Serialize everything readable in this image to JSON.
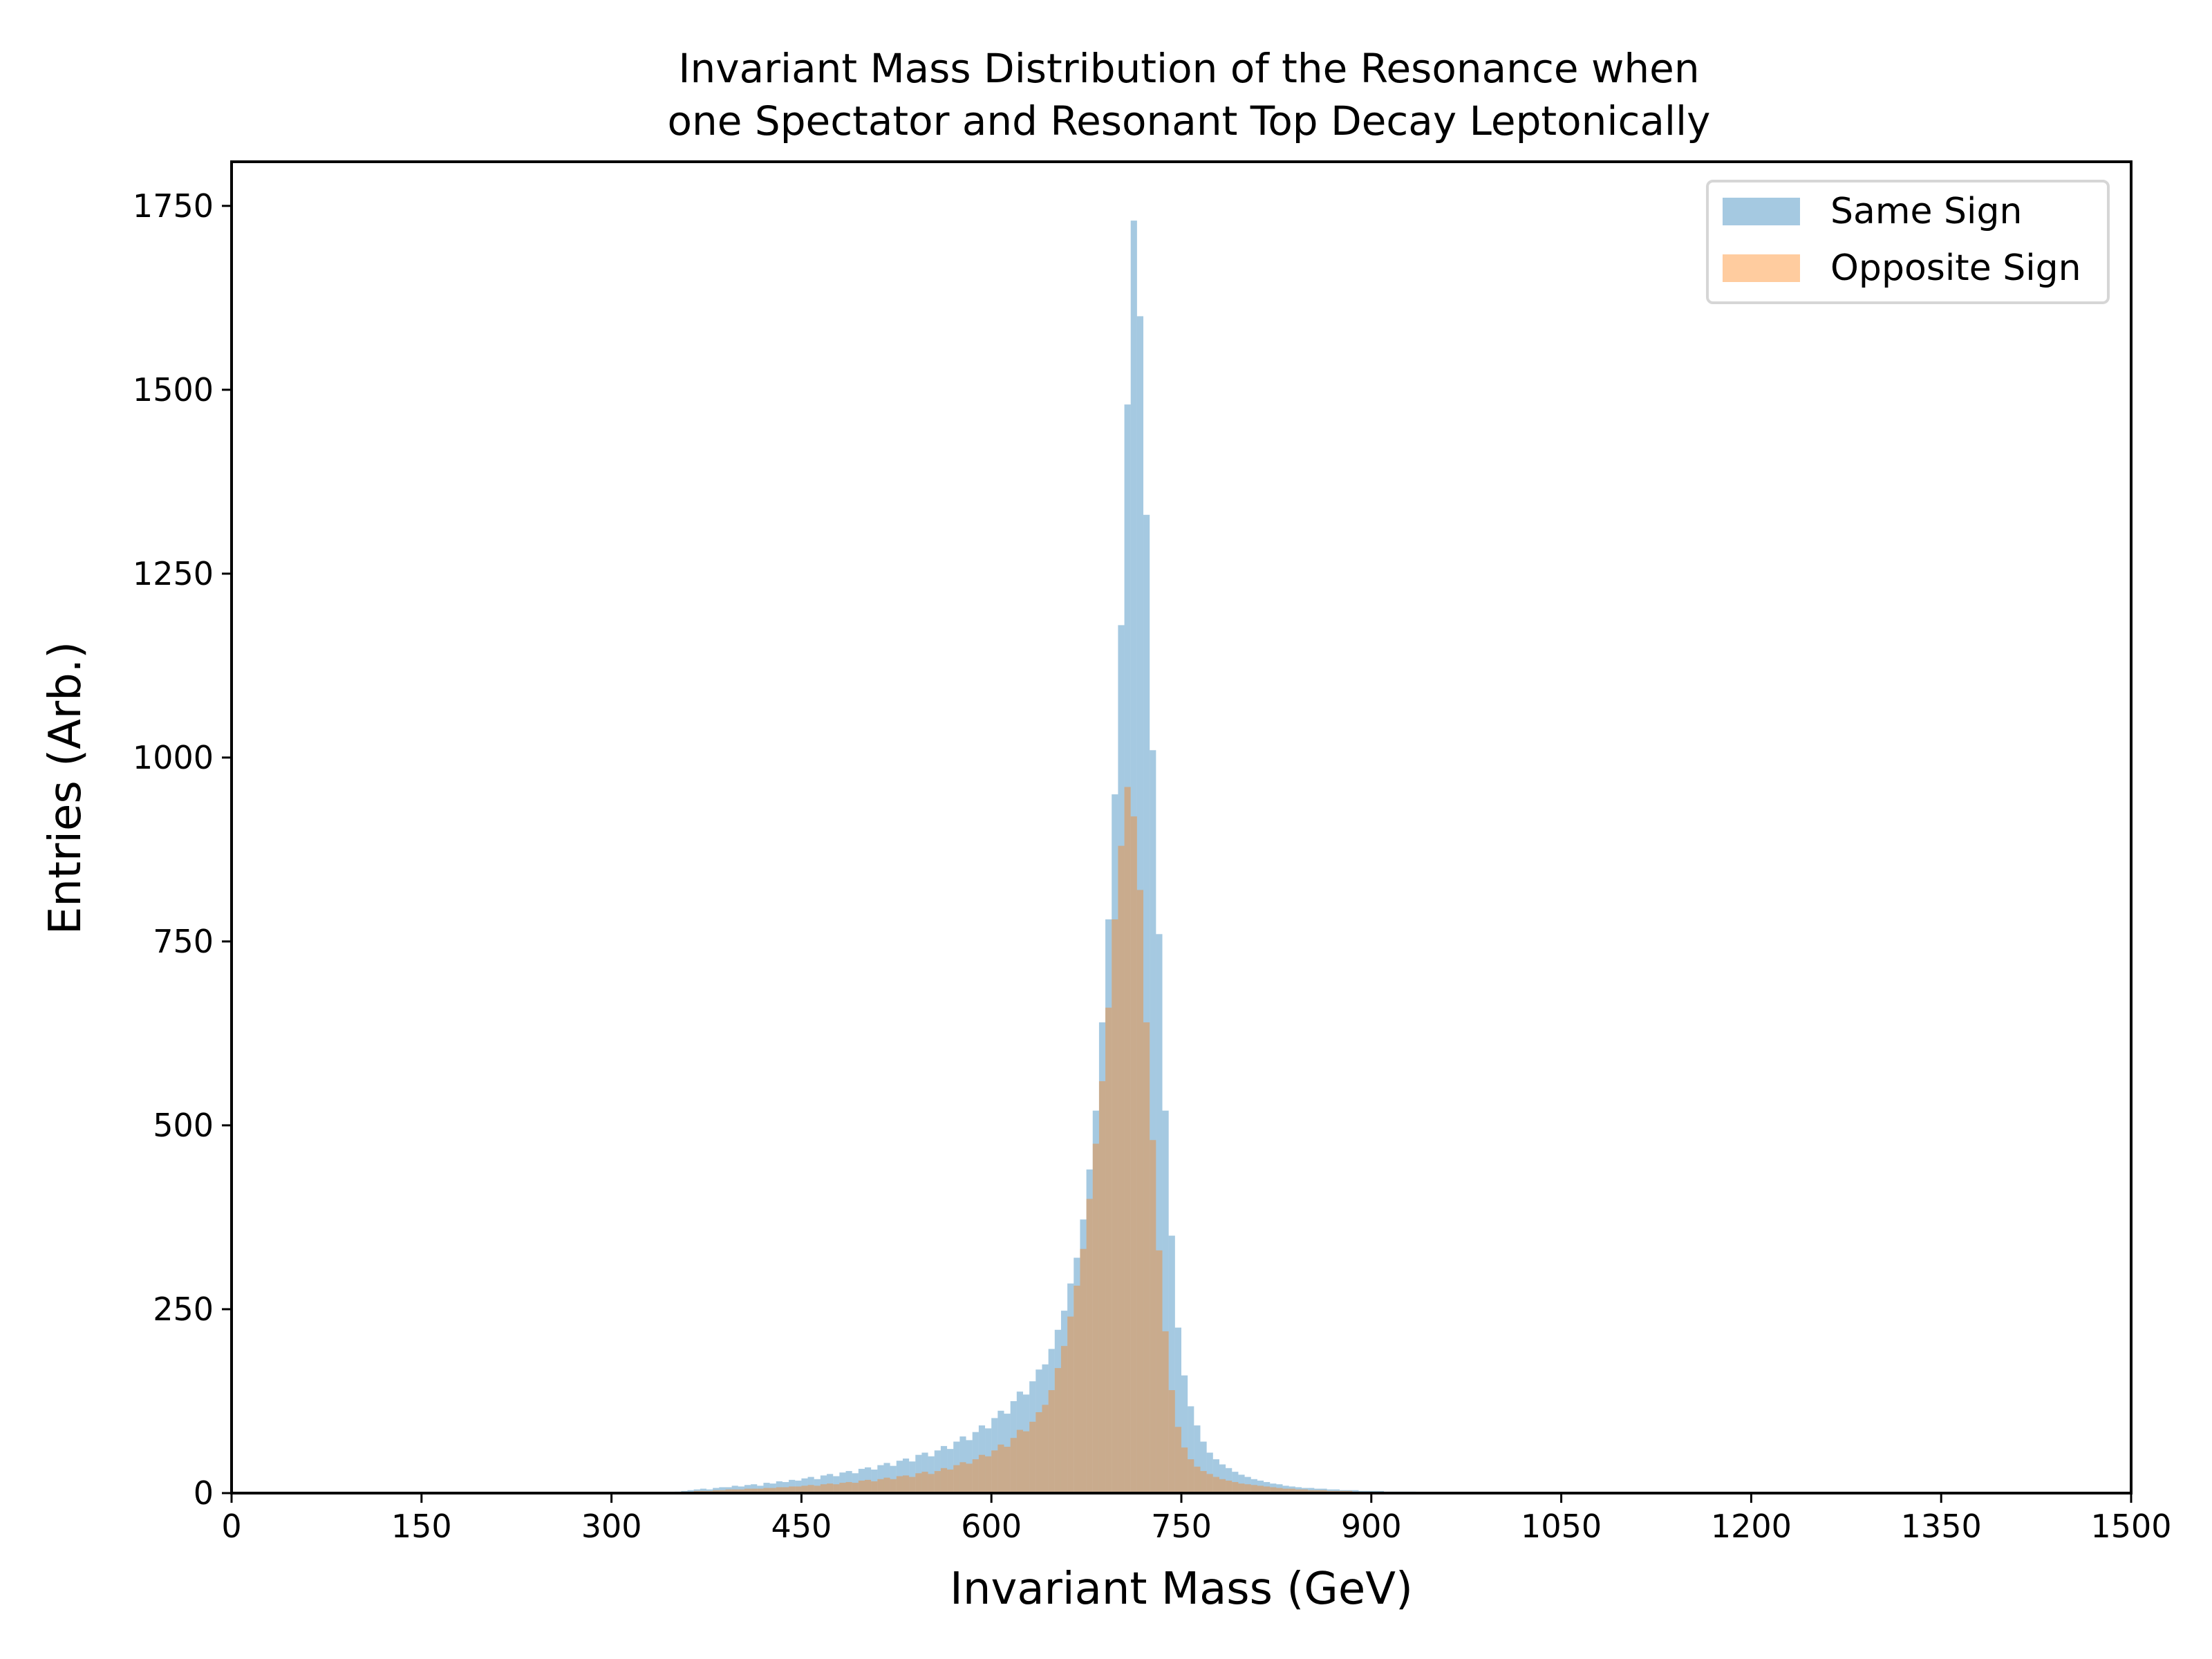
{
  "title_lines": [
    "Invariant Mass Distribution of the Resonance when",
    "one Spectator and Resonant Top Decay Leptonically"
  ],
  "colors": {
    "same_sign": "#1f77b4",
    "opposite_sign": "#ff7f0e",
    "fill_opacity": 0.4
  },
  "chart_data": {
    "type": "bar",
    "subtype": "histogram",
    "title": "Invariant Mass Distribution of the Resonance when\none Spectator and Resonant Top Decay Leptonically",
    "xlabel": "Invariant Mass (GeV)",
    "ylabel": "Entries (Arb.)",
    "xlim": [
      0,
      1500
    ],
    "ylim": [
      0,
      1810
    ],
    "xticks": [
      "0",
      "150",
      "300",
      "450",
      "600",
      "750",
      "900",
      "1050",
      "1200",
      "1350",
      "1500"
    ],
    "yticks": [
      "0",
      "250",
      "500",
      "750",
      "1000",
      "1250",
      "1500",
      "1750"
    ],
    "grid": false,
    "legend_position": "top-right",
    "bins": {
      "start": 350,
      "width": 5,
      "count": 130
    },
    "series": [
      {
        "name": "Same Sign",
        "color": "#1f77b4",
        "values": [
          2,
          3,
          4,
          5,
          6,
          5,
          7,
          8,
          8,
          10,
          9,
          11,
          12,
          10,
          14,
          13,
          16,
          15,
          18,
          17,
          20,
          22,
          19,
          24,
          26,
          23,
          28,
          30,
          27,
          33,
          35,
          32,
          38,
          41,
          37,
          44,
          47,
          43,
          52,
          55,
          50,
          58,
          64,
          60,
          70,
          77,
          72,
          83,
          92,
          88,
          102,
          112,
          108,
          125,
          138,
          134,
          152,
          168,
          175,
          196,
          222,
          248,
          285,
          320,
          372,
          440,
          520,
          640,
          780,
          950,
          1180,
          1480,
          1730,
          1600,
          1330,
          1010,
          760,
          520,
          350,
          225,
          160,
          118,
          92,
          70,
          55,
          46,
          39,
          34,
          29,
          25,
          22,
          19,
          17,
          15,
          13,
          12,
          10,
          9,
          8,
          7,
          7,
          6,
          6,
          5,
          5,
          4,
          4,
          4,
          3,
          3,
          3,
          3,
          2,
          2,
          2,
          2,
          2,
          1,
          1,
          1,
          1,
          1,
          1,
          1,
          1,
          1,
          0,
          0,
          0,
          0
        ]
      },
      {
        "name": "Opposite Sign",
        "color": "#ff7f0e",
        "values": [
          1,
          2,
          2,
          3,
          3,
          3,
          4,
          4,
          5,
          5,
          5,
          6,
          6,
          6,
          7,
          7,
          8,
          8,
          9,
          9,
          10,
          11,
          10,
          12,
          13,
          12,
          14,
          15,
          14,
          17,
          18,
          16,
          19,
          21,
          19,
          23,
          24,
          22,
          27,
          29,
          26,
          30,
          34,
          32,
          38,
          42,
          40,
          46,
          52,
          50,
          58,
          66,
          63,
          75,
          86,
          84,
          97,
          110,
          120,
          140,
          170,
          200,
          240,
          282,
          332,
          400,
          475,
          560,
          660,
          780,
          880,
          960,
          920,
          820,
          640,
          480,
          330,
          220,
          140,
          90,
          62,
          46,
          36,
          30,
          26,
          22,
          19,
          17,
          15,
          13,
          12,
          11,
          10,
          9,
          8,
          7,
          6,
          6,
          5,
          5,
          4,
          4,
          4,
          3,
          3,
          3,
          3,
          2,
          2,
          2,
          2,
          2,
          1,
          1,
          1,
          1,
          1,
          1,
          1,
          1,
          1,
          1,
          0,
          0,
          0,
          0,
          0,
          0,
          0,
          0
        ]
      }
    ]
  }
}
